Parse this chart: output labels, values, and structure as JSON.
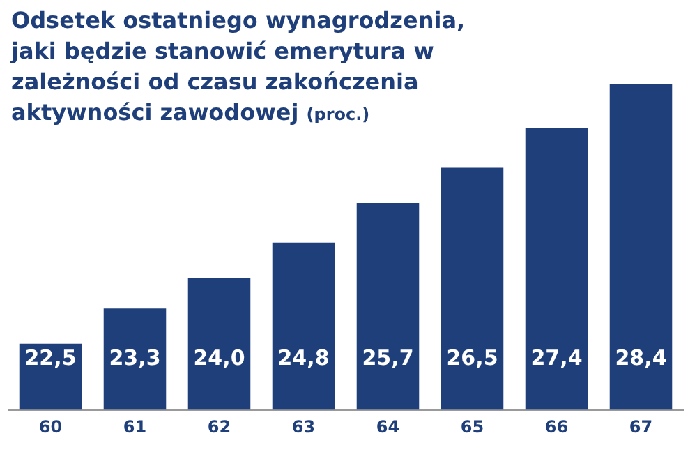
{
  "chart_data": {
    "type": "bar",
    "title": "Odsetek ostatniego wynagrodzenia, jaki będzie stanowić emerytura w zależności od czasu zakończenia aktywności zawodowej",
    "subtitle": "(proc.)",
    "categories": [
      "60",
      "61",
      "62",
      "63",
      "64",
      "65",
      "66",
      "67"
    ],
    "values": [
      22.5,
      23.3,
      24.0,
      24.8,
      25.7,
      26.5,
      27.4,
      28.4
    ],
    "value_labels": [
      "22,5",
      "23,3",
      "24,0",
      "24,8",
      "25,7",
      "26,5",
      "27,4",
      "28,4"
    ],
    "color": "#1f3f7a",
    "tick_labels": "x",
    "grid": false,
    "legend": false
  }
}
